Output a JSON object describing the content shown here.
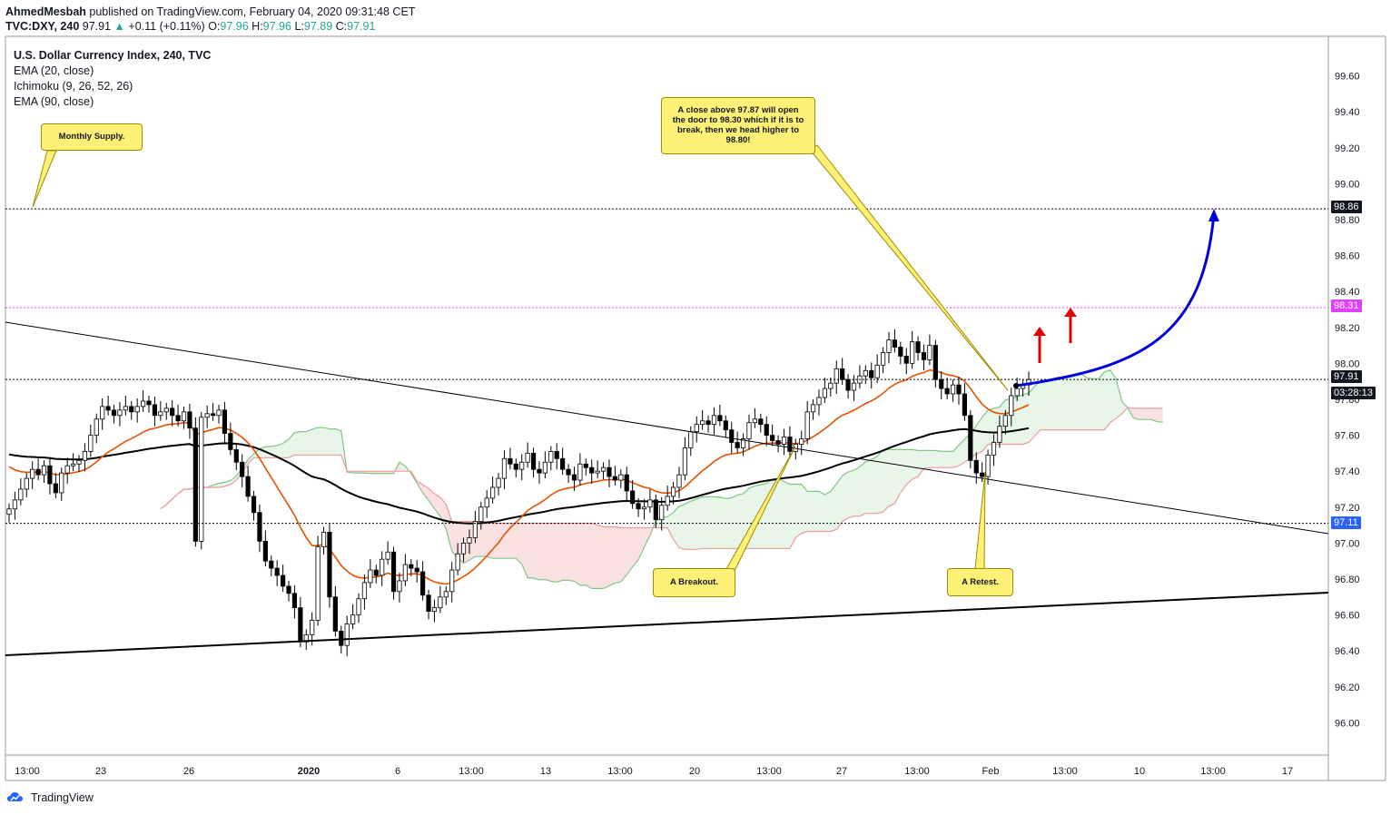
{
  "header": {
    "author": "AhmedMesbah",
    "published_text": "published on TradingView.com, February 04, 2020 09:31:48 CET",
    "symbol_line": "TVC:DXY, 240",
    "last": "97.91",
    "arrow": "▲",
    "change": "+0.11 (+0.11%)",
    "o_label": "O:",
    "o": "97.96",
    "h_label": "H:",
    "h": "97.96",
    "l_label": "L:",
    "l": "97.89",
    "c_label": "C:",
    "c": "97.91"
  },
  "legend": {
    "title": "U.S. Dollar Currency Index, 240, TVC",
    "items": [
      "EMA (20, close)",
      "Ichimoku (9, 26, 52, 26)",
      "EMA (90, close)"
    ]
  },
  "annotations": {
    "monthly_supply": "Monthly Supply.",
    "forecast": "A close above 97.87 will open the door to 98.30 which if it is to break, then we head higher to 98.80!",
    "breakout": "A Breakout.",
    "retest": "A Retest."
  },
  "price_tags": {
    "level_1": "98.86",
    "level_2": "98.31",
    "last_price": "97.91",
    "countdown": "03:28:13",
    "level_3": "97.11"
  },
  "footer": {
    "brand": "TradingView"
  },
  "colors": {
    "ema20": "#e65100",
    "ema90": "#000000",
    "kumo_bull": "#81c784",
    "kumo_bear": "#ef9a9a",
    "forecast_arrow": "#0000dd",
    "up_arrows": "#e00000",
    "level_magenta": "#e040fb",
    "callout": "#fff176"
  },
  "chart_data": {
    "type": "candlestick",
    "symbol": "TVC:DXY",
    "timeframe": "240",
    "ylim": [
      95.82,
      99.82
    ],
    "y_ticks": [
      96.0,
      96.2,
      96.4,
      96.6,
      96.8,
      97.0,
      97.2,
      97.4,
      97.6,
      97.8,
      98.0,
      98.2,
      98.4,
      98.6,
      98.8,
      99.0,
      99.2,
      99.4,
      99.6
    ],
    "x_tick_labels": [
      "13:00",
      "23",
      "26",
      "2020",
      "6",
      "13:00",
      "13",
      "13:00",
      "20",
      "13:00",
      "27",
      "13:00",
      "Feb",
      "13:00",
      "10",
      "13:00",
      "17"
    ],
    "horizontal_levels": [
      98.86,
      98.31,
      97.91,
      97.11
    ],
    "ohlc_closes": [
      97.19,
      97.24,
      97.3,
      97.36,
      97.41,
      97.38,
      97.43,
      97.33,
      97.28,
      97.39,
      97.43,
      97.44,
      97.46,
      97.51,
      97.6,
      97.69,
      97.76,
      97.74,
      97.71,
      97.74,
      97.76,
      97.73,
      97.76,
      97.79,
      97.77,
      97.71,
      97.73,
      97.75,
      97.71,
      97.68,
      97.73,
      97.64,
      97.01,
      97.7,
      97.72,
      97.71,
      97.74,
      97.61,
      97.52,
      97.45,
      97.37,
      97.26,
      97.17,
      97.01,
      96.9,
      96.86,
      96.82,
      96.76,
      96.72,
      96.64,
      96.45,
      96.49,
      96.57,
      96.98,
      97.06,
      96.7,
      96.51,
      96.43,
      96.55,
      96.6,
      96.69,
      96.78,
      96.85,
      96.82,
      96.91,
      96.95,
      96.73,
      96.79,
      96.88,
      96.86,
      96.84,
      96.71,
      96.62,
      96.64,
      96.7,
      96.73,
      96.85,
      96.94,
      97.0,
      97.03,
      97.12,
      97.2,
      97.25,
      97.31,
      97.36,
      97.47,
      97.44,
      97.41,
      97.45,
      97.5,
      97.41,
      97.39,
      97.45,
      97.51,
      97.47,
      97.41,
      97.38,
      97.35,
      97.44,
      97.42,
      97.39,
      97.4,
      97.42,
      97.37,
      97.35,
      97.38,
      97.29,
      97.22,
      97.19,
      97.2,
      97.24,
      97.13,
      97.21,
      97.26,
      97.31,
      97.38,
      97.53,
      97.62,
      97.66,
      97.68,
      97.66,
      97.71,
      97.68,
      97.63,
      97.56,
      97.53,
      97.58,
      97.67,
      97.69,
      97.66,
      97.6,
      97.57,
      97.55,
      97.59,
      97.51,
      97.55,
      97.58,
      97.73,
      97.77,
      97.81,
      97.86,
      97.89,
      97.97,
      97.91,
      97.85,
      97.89,
      97.93,
      97.96,
      97.92,
      97.99,
      98.06,
      98.13,
      98.09,
      98.04,
      98.0,
      98.12,
      98.06,
      98.02,
      98.1,
      97.91,
      97.86,
      97.83,
      97.88,
      97.83,
      97.71,
      97.46,
      97.39,
      97.37,
      97.49,
      97.56,
      97.65,
      97.71,
      97.82,
      97.86,
      97.88,
      97.91
    ]
  }
}
